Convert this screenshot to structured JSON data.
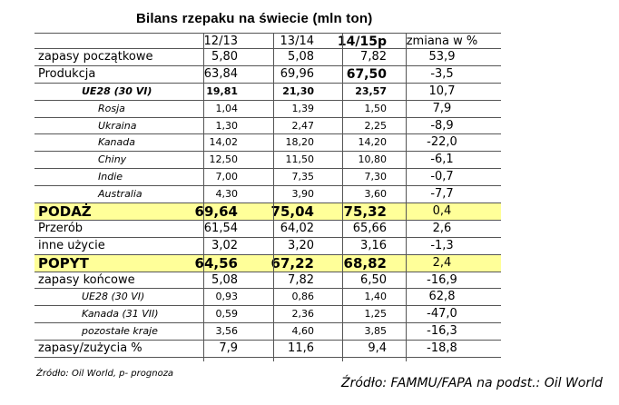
{
  "title": "Bilans rzepaku na świecie  (mln ton)",
  "columns": [
    "12/13",
    "13/14",
    "14/15p",
    "zmiana w %"
  ],
  "rows": [
    {
      "label": "zapasy początkowe",
      "v": [
        "5,80",
        "5,08",
        "7,82",
        "53,9"
      ],
      "style": ""
    },
    {
      "label": "Produkcja",
      "v": [
        "63,84",
        "69,96",
        "67,50",
        "-3,5"
      ],
      "style": "bold3"
    },
    {
      "label": "UE28 (30 VI)",
      "v": [
        "19,81",
        "21,30",
        "23,57",
        "10,7"
      ],
      "style": "sub ind1 bold"
    },
    {
      "label": "Rosja",
      "v": [
        "1,04",
        "1,39",
        "1,50",
        "7,9"
      ],
      "style": "sub ind2"
    },
    {
      "label": "Ukraina",
      "v": [
        "1,30",
        "2,47",
        "2,25",
        "-8,9"
      ],
      "style": "sub ind2"
    },
    {
      "label": "Kanada",
      "v": [
        "14,02",
        "18,20",
        "14,20",
        "-22,0"
      ],
      "style": "sub ind2"
    },
    {
      "label": "Chiny",
      "v": [
        "12,50",
        "11,50",
        "10,80",
        "-6,1"
      ],
      "style": "sub ind2"
    },
    {
      "label": "Indie",
      "v": [
        "7,00",
        "7,35",
        "7,30",
        "-0,7"
      ],
      "style": "sub ind2"
    },
    {
      "label": "Australia",
      "v": [
        "4,30",
        "3,90",
        "3,60",
        "-7,7"
      ],
      "style": "sub ind2"
    },
    {
      "label": "PODAŻ",
      "v": [
        "69,64",
        "75,04",
        "75,32",
        "0,4"
      ],
      "style": "hl"
    },
    {
      "label": "Przerób",
      "v": [
        "61,54",
        "64,02",
        "65,66",
        "2,6"
      ],
      "style": ""
    },
    {
      "label": "inne użycie",
      "v": [
        "3,02",
        "3,20",
        "3,16",
        "-1,3"
      ],
      "style": ""
    },
    {
      "label": "POPYT",
      "v": [
        "64,56",
        "67,22",
        "68,82",
        "2,4"
      ],
      "style": "hl"
    },
    {
      "label": "zapasy końcowe",
      "v": [
        "5,08",
        "7,82",
        "6,50",
        "-16,9"
      ],
      "style": ""
    },
    {
      "label": "UE28 (30 VI)",
      "v": [
        "0,93",
        "0,86",
        "1,40",
        "62,8"
      ],
      "style": "sub ind1"
    },
    {
      "label": "Kanada (31 VII)",
      "v": [
        "0,59",
        "2,36",
        "1,25",
        "-47,0"
      ],
      "style": "sub ind1"
    },
    {
      "label": "pozostałe kraje",
      "v": [
        "3,56",
        "4,60",
        "3,85",
        "-16,3"
      ],
      "style": "sub ind1"
    },
    {
      "label": "zapasy/zużycia %",
      "v": [
        "7,9",
        "11,6",
        "9,4",
        "-18,8"
      ],
      "style": ""
    }
  ],
  "note": "Źródło: Oil World, p- prognoza",
  "source": "Źródło: FAMMU/FAPA na podst.: Oil World"
}
